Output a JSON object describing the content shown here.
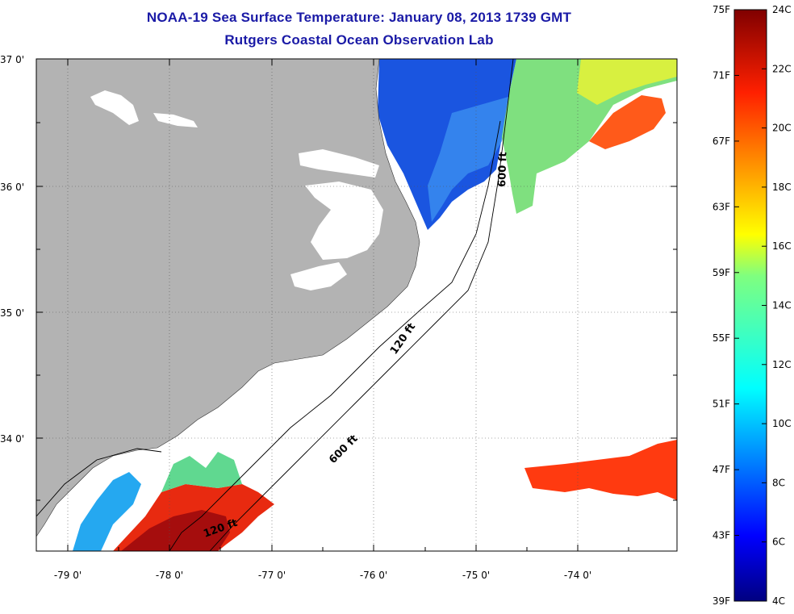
{
  "title": {
    "line1": "NOAA-19 Sea Surface Temperature:  January 08, 2013 1739 GMT",
    "line2": "Rutgers Coastal Ocean Observation Lab"
  },
  "axes": {
    "lat_labels": [
      "37 0'",
      "36 0'",
      "35 0'",
      "34 0'"
    ],
    "lon_labels": [
      "-79 0'",
      "-78 0'",
      "-77 0'",
      "-76 0'",
      "-75 0'",
      "-74 0'"
    ]
  },
  "contours": {
    "labels": [
      "600 ft",
      "120 ft",
      "600 ft",
      "120 ft"
    ]
  },
  "colorbar": {
    "fahrenheit": [
      "75F",
      "71F",
      "67F",
      "63F",
      "59F",
      "55F",
      "51F",
      "47F",
      "43F",
      "39F"
    ],
    "celsius": [
      "24C",
      "22C",
      "20C",
      "18C",
      "16C",
      "14C",
      "12C",
      "10C",
      "8C",
      "6C",
      "4C"
    ]
  },
  "colors": {
    "land": "#b3b3b3",
    "title": "#1a1aa6",
    "cold": "#0a3ad8",
    "warm": "#d92a10"
  }
}
